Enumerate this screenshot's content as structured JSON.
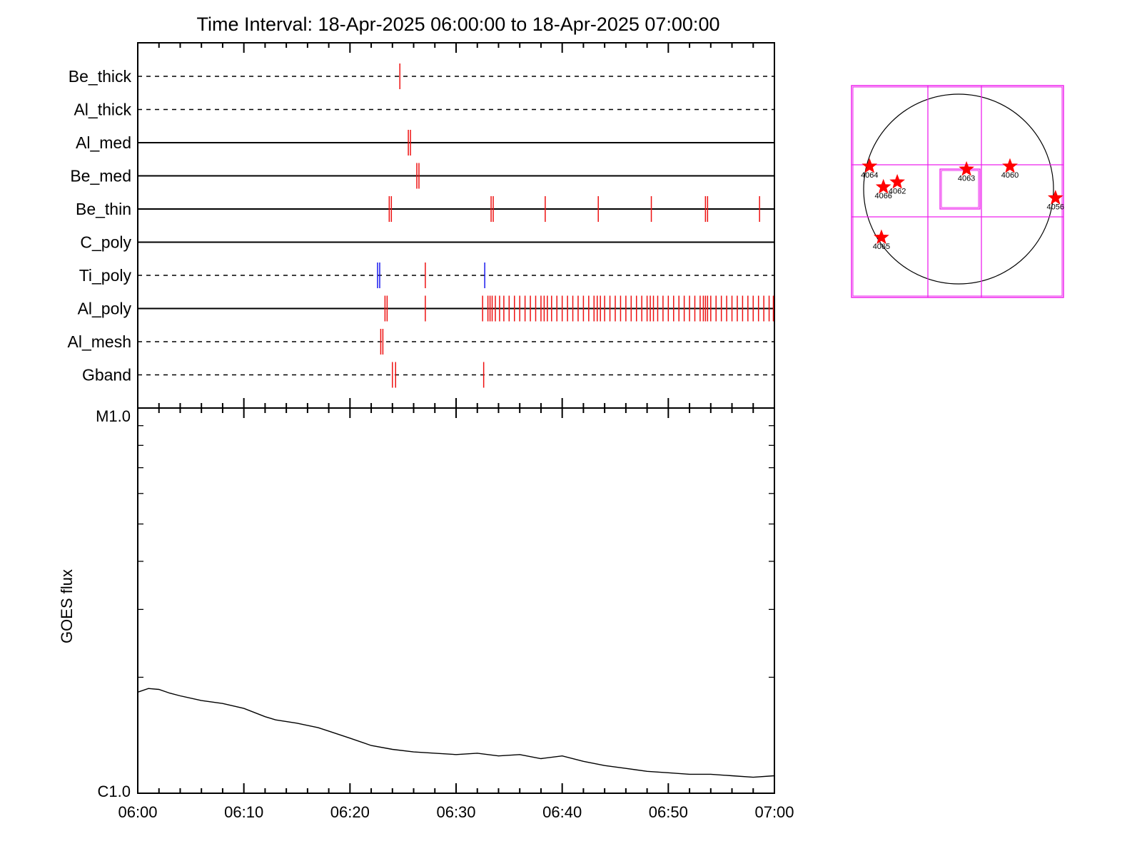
{
  "chart_data": [
    {
      "type": "timeline",
      "title": "Time Interval: 18-Apr-2025 06:00:00 to 18-Apr-2025 07:00:00",
      "x_tick_labels": [
        "06:00",
        "06:10",
        "06:20",
        "06:30",
        "06:40",
        "06:50",
        "07:00"
      ],
      "x_range_minutes": [
        0,
        60
      ],
      "colors": {
        "event": "#ee1111",
        "event_alt": "#1a1aee",
        "axis": "#000000"
      },
      "rows": [
        {
          "label": "Be_thick",
          "line": "dashed",
          "events": [
            {
              "t": 24.7,
              "c": "r"
            }
          ]
        },
        {
          "label": "Al_thick",
          "line": "dashed",
          "events": []
        },
        {
          "label": "Al_med",
          "line": "solid",
          "events": [
            {
              "t": 25.5,
              "c": "r"
            },
            {
              "t": 25.7,
              "c": "r"
            }
          ]
        },
        {
          "label": "Be_med",
          "line": "solid",
          "events": [
            {
              "t": 26.3,
              "c": "r"
            },
            {
              "t": 26.5,
              "c": "r"
            }
          ]
        },
        {
          "label": "Be_thin",
          "line": "solid",
          "events": [
            {
              "t": 23.7,
              "c": "r"
            },
            {
              "t": 23.9,
              "c": "r"
            },
            {
              "t": 33.3,
              "c": "r"
            },
            {
              "t": 33.5,
              "c": "r"
            },
            {
              "t": 38.4,
              "c": "r"
            },
            {
              "t": 43.4,
              "c": "r"
            },
            {
              "t": 48.4,
              "c": "r"
            },
            {
              "t": 53.5,
              "c": "r"
            },
            {
              "t": 53.7,
              "c": "r"
            },
            {
              "t": 58.6,
              "c": "r"
            }
          ]
        },
        {
          "label": "C_poly",
          "line": "solid",
          "events": []
        },
        {
          "label": "Ti_poly",
          "line": "dashed",
          "events": [
            {
              "t": 22.6,
              "c": "b"
            },
            {
              "t": 22.8,
              "c": "b"
            },
            {
              "t": 27.1,
              "c": "r"
            },
            {
              "t": 32.7,
              "c": "b"
            }
          ]
        },
        {
          "label": "Al_poly",
          "line": "solid",
          "events": [
            {
              "t": 23.3,
              "c": "r"
            },
            {
              "t": 23.5,
              "c": "r"
            },
            {
              "t": 27.1,
              "c": "r"
            },
            {
              "t": 32.5,
              "c": "r"
            },
            {
              "t": 33.0,
              "c": "r"
            },
            {
              "t": 33.2,
              "c": "r"
            },
            {
              "t": 33.4,
              "c": "r"
            },
            {
              "t": 33.7,
              "c": "r"
            },
            {
              "t": 34.1,
              "c": "r"
            },
            {
              "t": 34.5,
              "c": "r"
            },
            {
              "t": 35.0,
              "c": "r"
            },
            {
              "t": 35.5,
              "c": "r"
            },
            {
              "t": 36.0,
              "c": "r"
            },
            {
              "t": 36.5,
              "c": "r"
            },
            {
              "t": 37.0,
              "c": "r"
            },
            {
              "t": 37.5,
              "c": "r"
            },
            {
              "t": 38.0,
              "c": "r"
            },
            {
              "t": 38.3,
              "c": "r"
            },
            {
              "t": 38.6,
              "c": "r"
            },
            {
              "t": 39.0,
              "c": "r"
            },
            {
              "t": 39.5,
              "c": "r"
            },
            {
              "t": 40.0,
              "c": "r"
            },
            {
              "t": 40.5,
              "c": "r"
            },
            {
              "t": 41.0,
              "c": "r"
            },
            {
              "t": 41.5,
              "c": "r"
            },
            {
              "t": 42.0,
              "c": "r"
            },
            {
              "t": 42.5,
              "c": "r"
            },
            {
              "t": 43.0,
              "c": "r"
            },
            {
              "t": 43.3,
              "c": "r"
            },
            {
              "t": 43.6,
              "c": "r"
            },
            {
              "t": 44.0,
              "c": "r"
            },
            {
              "t": 44.5,
              "c": "r"
            },
            {
              "t": 45.0,
              "c": "r"
            },
            {
              "t": 45.5,
              "c": "r"
            },
            {
              "t": 46.0,
              "c": "r"
            },
            {
              "t": 46.5,
              "c": "r"
            },
            {
              "t": 47.0,
              "c": "r"
            },
            {
              "t": 47.5,
              "c": "r"
            },
            {
              "t": 48.0,
              "c": "r"
            },
            {
              "t": 48.3,
              "c": "r"
            },
            {
              "t": 48.6,
              "c": "r"
            },
            {
              "t": 49.0,
              "c": "r"
            },
            {
              "t": 49.5,
              "c": "r"
            },
            {
              "t": 50.0,
              "c": "r"
            },
            {
              "t": 50.5,
              "c": "r"
            },
            {
              "t": 51.0,
              "c": "r"
            },
            {
              "t": 51.5,
              "c": "r"
            },
            {
              "t": 52.0,
              "c": "r"
            },
            {
              "t": 52.5,
              "c": "r"
            },
            {
              "t": 53.0,
              "c": "r"
            },
            {
              "t": 53.3,
              "c": "r"
            },
            {
              "t": 53.5,
              "c": "r"
            },
            {
              "t": 53.7,
              "c": "r"
            },
            {
              "t": 54.0,
              "c": "r"
            },
            {
              "t": 54.5,
              "c": "r"
            },
            {
              "t": 55.0,
              "c": "r"
            },
            {
              "t": 55.5,
              "c": "r"
            },
            {
              "t": 56.0,
              "c": "r"
            },
            {
              "t": 56.5,
              "c": "r"
            },
            {
              "t": 57.0,
              "c": "r"
            },
            {
              "t": 57.5,
              "c": "r"
            },
            {
              "t": 58.0,
              "c": "r"
            },
            {
              "t": 58.5,
              "c": "r"
            },
            {
              "t": 59.0,
              "c": "r"
            },
            {
              "t": 59.5,
              "c": "r"
            },
            {
              "t": 59.9,
              "c": "r"
            }
          ]
        },
        {
          "label": "Al_mesh",
          "line": "dashed",
          "events": [
            {
              "t": 22.9,
              "c": "r"
            },
            {
              "t": 23.1,
              "c": "r"
            }
          ]
        },
        {
          "label": "Gband",
          "line": "dashed",
          "events": [
            {
              "t": 24.0,
              "c": "r"
            },
            {
              "t": 24.3,
              "c": "r"
            },
            {
              "t": 32.6,
              "c": "r"
            }
          ]
        }
      ]
    },
    {
      "type": "line",
      "ylabel": "GOES flux",
      "y_tick_labels": {
        "top": "M1.0",
        "bottom": "C1.0"
      },
      "y_scale": "log",
      "ylim": [
        1e-06,
        1e-05
      ],
      "x_tick_labels": [
        "06:00",
        "06:10",
        "06:20",
        "06:30",
        "06:40",
        "06:50",
        "07:00"
      ],
      "x_range_minutes": [
        0,
        60
      ],
      "series": [
        {
          "color": "#000000",
          "x": [
            0,
            1,
            2,
            3,
            4,
            6,
            8,
            10,
            12,
            13,
            15,
            17,
            18,
            20,
            22,
            24,
            26,
            28,
            30,
            32,
            34,
            36,
            38,
            40,
            42,
            44,
            46,
            48,
            50,
            52,
            54,
            56,
            58,
            60
          ],
          "y": [
            1.83e-06,
            1.87e-06,
            1.86e-06,
            1.82e-06,
            1.79e-06,
            1.74e-06,
            1.71e-06,
            1.66e-06,
            1.58e-06,
            1.55e-06,
            1.52e-06,
            1.48e-06,
            1.45e-06,
            1.39e-06,
            1.33e-06,
            1.3e-06,
            1.28e-06,
            1.27e-06,
            1.26e-06,
            1.27e-06,
            1.25e-06,
            1.26e-06,
            1.23e-06,
            1.25e-06,
            1.21e-06,
            1.18e-06,
            1.16e-06,
            1.14e-06,
            1.13e-06,
            1.12e-06,
            1.12e-06,
            1.11e-06,
            1.1e-06,
            1.11e-06
          ]
        }
      ]
    },
    {
      "type": "scatter",
      "subtype": "solar-disk-map",
      "colors": {
        "grid": "#ee22ee",
        "disk": "#000000",
        "marker": "#ff0000"
      },
      "points": [
        {
          "label": "4064",
          "x": -900,
          "y": 230
        },
        {
          "label": "4066",
          "x": -760,
          "y": 20
        },
        {
          "label": "4062",
          "x": -620,
          "y": 70
        },
        {
          "label": "4063",
          "x": 80,
          "y": 200
        },
        {
          "label": "4060",
          "x": 520,
          "y": 230
        },
        {
          "label": "4056",
          "x": 980,
          "y": -90
        },
        {
          "label": "4065",
          "x": -780,
          "y": -490
        }
      ]
    }
  ]
}
